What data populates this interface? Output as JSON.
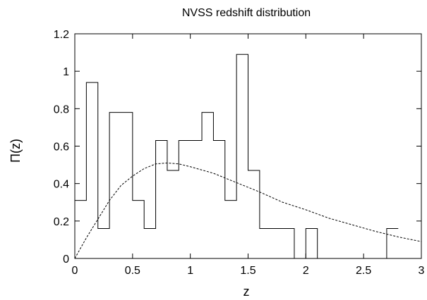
{
  "chart_data": {
    "type": "line",
    "title": "NVSS redshift distribution",
    "xlabel": "z",
    "ylabel": "Π(z)",
    "xlim": [
      0,
      3
    ],
    "ylim": [
      0,
      1.2
    ],
    "xticks": [
      "0",
      "0.5",
      "1",
      "1.5",
      "2",
      "2.5",
      "3"
    ],
    "yticks": [
      "0",
      "0.2",
      "0.4",
      "0.6",
      "0.8",
      "1",
      "1.2"
    ],
    "grid": false,
    "legend": "none",
    "series": [
      {
        "style": "histogram-step",
        "color": "#000000",
        "bins": [
          {
            "x0": 0.0,
            "x1": 0.1,
            "y": 0.31
          },
          {
            "x0": 0.1,
            "x1": 0.2,
            "y": 0.94
          },
          {
            "x0": 0.2,
            "x1": 0.3,
            "y": 0.16
          },
          {
            "x0": 0.3,
            "x1": 0.5,
            "y": 0.78
          },
          {
            "x0": 0.5,
            "x1": 0.6,
            "y": 0.31
          },
          {
            "x0": 0.6,
            "x1": 0.7,
            "y": 0.16
          },
          {
            "x0": 0.7,
            "x1": 0.8,
            "y": 0.63
          },
          {
            "x0": 0.8,
            "x1": 0.9,
            "y": 0.47
          },
          {
            "x0": 0.9,
            "x1": 1.1,
            "y": 0.63
          },
          {
            "x0": 1.1,
            "x1": 1.2,
            "y": 0.78
          },
          {
            "x0": 1.2,
            "x1": 1.3,
            "y": 0.63
          },
          {
            "x0": 1.3,
            "x1": 1.4,
            "y": 0.31
          },
          {
            "x0": 1.4,
            "x1": 1.5,
            "y": 1.09
          },
          {
            "x0": 1.5,
            "x1": 1.6,
            "y": 0.47
          },
          {
            "x0": 1.6,
            "x1": 1.9,
            "y": 0.16
          },
          {
            "x0": 1.9,
            "x1": 2.0,
            "y": 0.0
          },
          {
            "x0": 2.0,
            "x1": 2.1,
            "y": 0.16
          },
          {
            "x0": 2.1,
            "x1": 2.7,
            "y": 0.0
          },
          {
            "x0": 2.7,
            "x1": 2.8,
            "y": 0.16
          }
        ]
      },
      {
        "style": "dashed-curve",
        "color": "#000000",
        "x": [
          0,
          0.1,
          0.2,
          0.3,
          0.4,
          0.5,
          0.6,
          0.7,
          0.8,
          0.9,
          1.0,
          1.2,
          1.4,
          1.6,
          1.8,
          2.0,
          2.2,
          2.4,
          2.6,
          2.8,
          3.0
        ],
        "y": [
          0,
          0.11,
          0.21,
          0.31,
          0.39,
          0.44,
          0.48,
          0.505,
          0.51,
          0.505,
          0.49,
          0.455,
          0.405,
          0.355,
          0.3,
          0.26,
          0.215,
          0.18,
          0.145,
          0.115,
          0.09
        ]
      }
    ]
  }
}
